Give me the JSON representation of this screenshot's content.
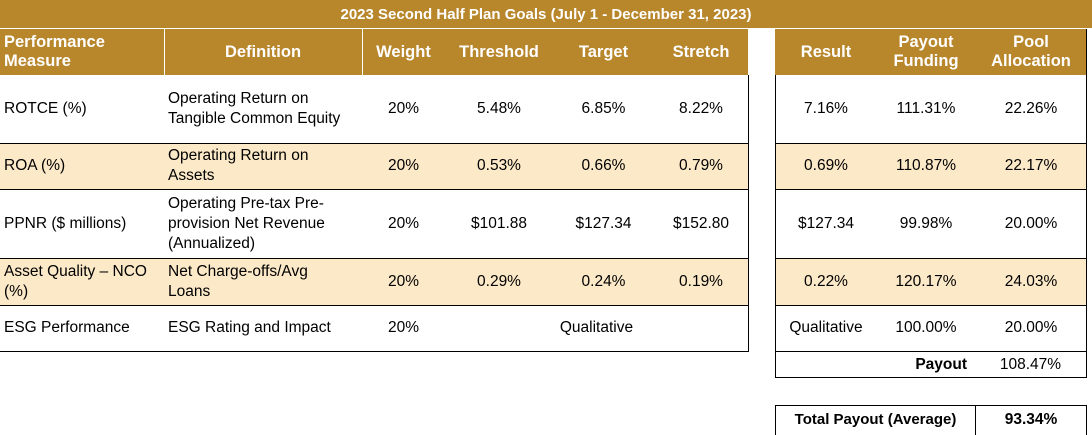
{
  "title": "2023 Second Half Plan Goals (July 1 - December 31, 2023)",
  "headers": {
    "measure": "Performance Measure",
    "definition": "Definition",
    "weight": "Weight",
    "threshold": "Threshold",
    "target": "Target",
    "stretch": "Stretch",
    "result": "Result",
    "payout_funding": "Payout Funding",
    "pool_allocation": "Pool Allocation"
  },
  "rows": [
    {
      "measure": "ROTCE (%)",
      "definition": "Operating Return on Tangible Common Equity",
      "weight": "20%",
      "threshold": "5.48%",
      "target": "6.85%",
      "stretch": "8.22%",
      "result": "7.16%",
      "payout_funding": "111.31%",
      "pool_allocation": "22.26%"
    },
    {
      "measure": "ROA (%)",
      "definition": "Operating Return on Assets",
      "weight": "20%",
      "threshold": "0.53%",
      "target": "0.66%",
      "stretch": "0.79%",
      "result": "0.69%",
      "payout_funding": "110.87%",
      "pool_allocation": "22.17%"
    },
    {
      "measure": "PPNR ($ millions)",
      "definition": "Operating Pre-tax Pre-provision Net Revenue (Annualized)",
      "weight": "20%",
      "threshold": "$101.88",
      "target": "$127.34",
      "stretch": "$152.80",
      "result": "$127.34",
      "payout_funding": "99.98%",
      "pool_allocation": "20.00%"
    },
    {
      "measure": "Asset Quality – NCO (%)",
      "definition": "Net Charge-offs/Avg Loans",
      "weight": "20%",
      "threshold": "0.29%",
      "target": "0.24%",
      "stretch": "0.19%",
      "result": "0.22%",
      "payout_funding": "120.17%",
      "pool_allocation": "24.03%"
    },
    {
      "measure": "ESG Performance",
      "definition": "ESG Rating and Impact",
      "weight": "20%",
      "qualitative": "Qualitative",
      "result": "Qualitative",
      "payout_funding": "100.00%",
      "pool_allocation": "20.00%"
    }
  ],
  "payout": {
    "label": "Payout",
    "value": "108.47%"
  },
  "total_payout": {
    "label": "Total Payout (Average)",
    "value": "93.34%"
  }
}
